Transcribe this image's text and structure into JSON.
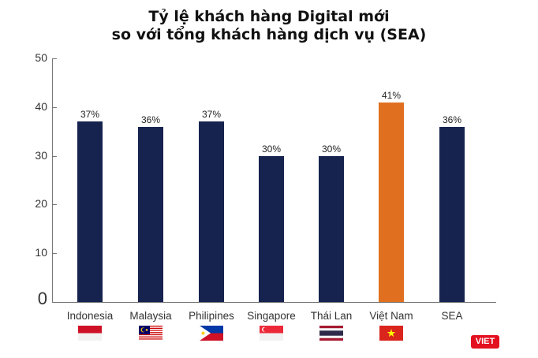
{
  "title": {
    "line1": "Tỷ lệ khách hàng Digital mới",
    "line2": "so với tổng khách hàng dịch vụ (SEA)"
  },
  "logo": {
    "text": "VIET",
    "color": "#e3101f"
  },
  "colors": {
    "bar": "#16234f",
    "highlight": "#e07020",
    "axis": "#777777"
  },
  "chart_data": {
    "type": "bar",
    "title": "Tỷ lệ khách hàng Digital mới so với tổng khách hàng dịch vụ (SEA)",
    "xlabel": "",
    "ylabel": "",
    "categories": [
      "Indonesia",
      "Malaysia",
      "Philipines",
      "Singapore",
      "Thái Lan",
      "Việt Nam",
      "SEA"
    ],
    "values": [
      37,
      36,
      37,
      30,
      30,
      41,
      36
    ],
    "value_labels": [
      "37%",
      "36%",
      "37%",
      "30%",
      "30%",
      "41%",
      "36%"
    ],
    "highlight_index": 5,
    "ylim": [
      0,
      50
    ],
    "yticks": [
      0,
      10,
      20,
      30,
      40,
      50
    ],
    "grid": false,
    "legend": null,
    "category_flags": [
      "indonesia-flag",
      "malaysia-flag",
      "philippines-flag",
      "singapore-flag",
      "thailand-flag",
      "vietnam-flag",
      null
    ]
  }
}
